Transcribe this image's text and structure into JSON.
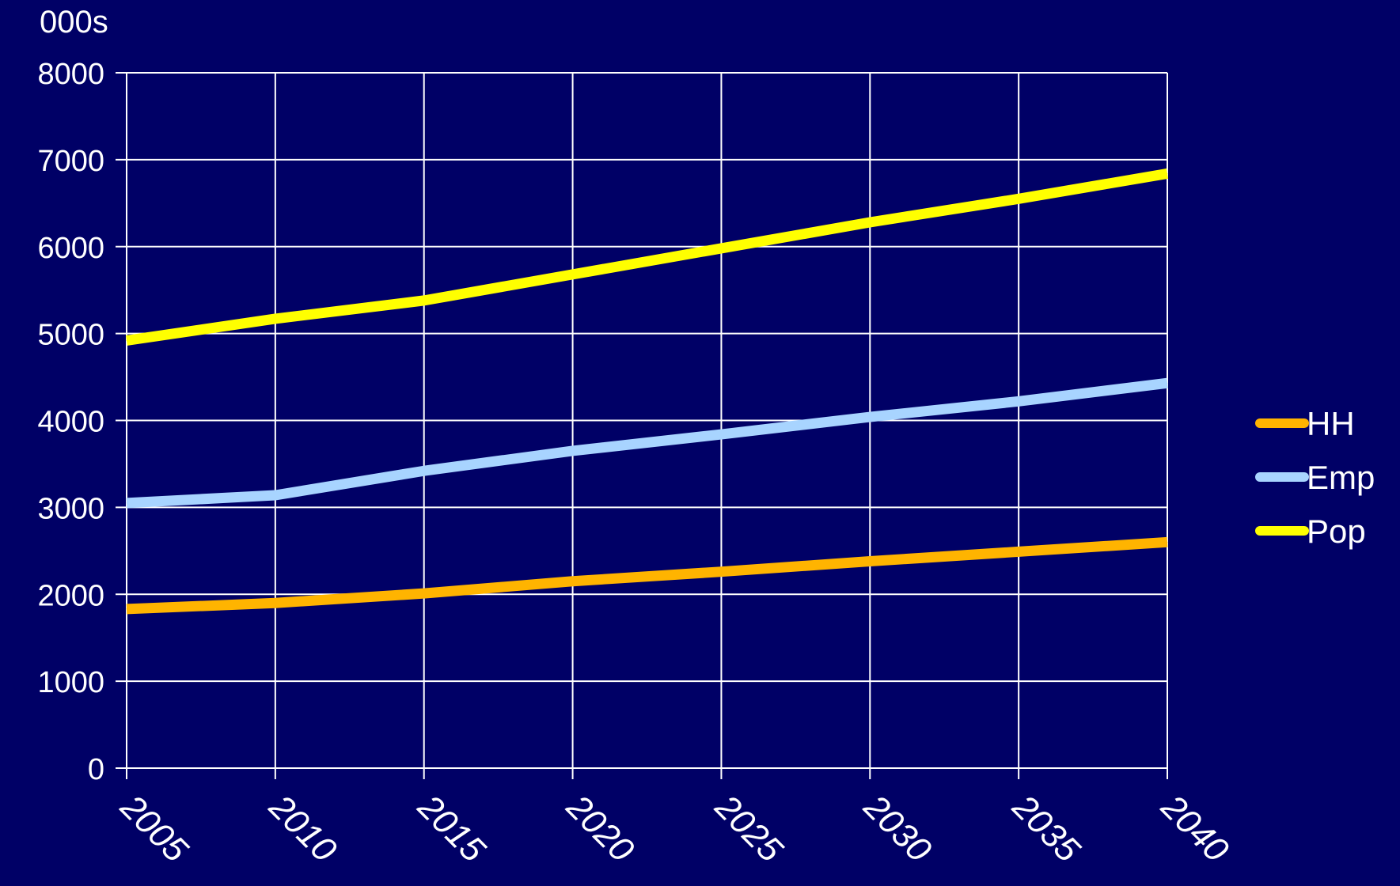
{
  "chart_data": {
    "type": "line",
    "unit_label": "000s",
    "x": [
      2005,
      2010,
      2015,
      2020,
      2025,
      2030,
      2035,
      2040
    ],
    "x_tick_labels": [
      "2005",
      "2010",
      "2015",
      "2020",
      "2025",
      "2030",
      "2035",
      "2040"
    ],
    "y_tick_labels": [
      "0",
      "1000",
      "2000",
      "3000",
      "4000",
      "5000",
      "6000",
      "7000",
      "8000"
    ],
    "ylim": [
      0,
      8000
    ],
    "grid": true,
    "legend_position": "right",
    "background_color": "#000066",
    "grid_color": "#ffffff",
    "series": [
      {
        "name": "HH",
        "color": "#ffb400",
        "values": [
          1830,
          1900,
          2010,
          2150,
          2260,
          2380,
          2490,
          2600
        ]
      },
      {
        "name": "Emp",
        "color": "#a8d4ff",
        "values": [
          3050,
          3140,
          3420,
          3650,
          3840,
          4040,
          4220,
          4430
        ]
      },
      {
        "name": "Pop",
        "color": "#ffff00",
        "values": [
          4920,
          5170,
          5380,
          5680,
          5980,
          6280,
          6550,
          6840
        ]
      }
    ]
  }
}
